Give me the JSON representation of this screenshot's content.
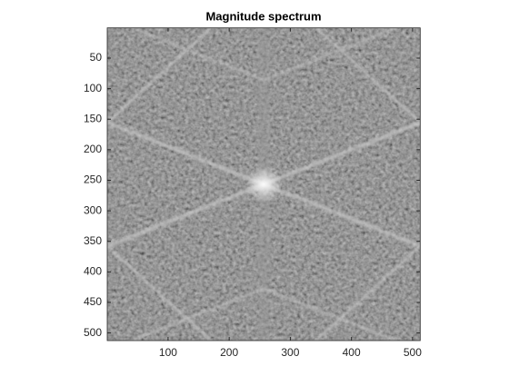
{
  "chart_data": {
    "type": "image",
    "title": "Magnitude spectrum",
    "xlim": [
      0.5,
      512.5
    ],
    "ylim": [
      0.5,
      512.5
    ],
    "y_reversed": true,
    "xticks": [
      100,
      200,
      300,
      400,
      500
    ],
    "yticks": [
      50,
      100,
      150,
      200,
      250,
      300,
      350,
      400,
      450,
      500
    ],
    "colormap": "gray"
  }
}
